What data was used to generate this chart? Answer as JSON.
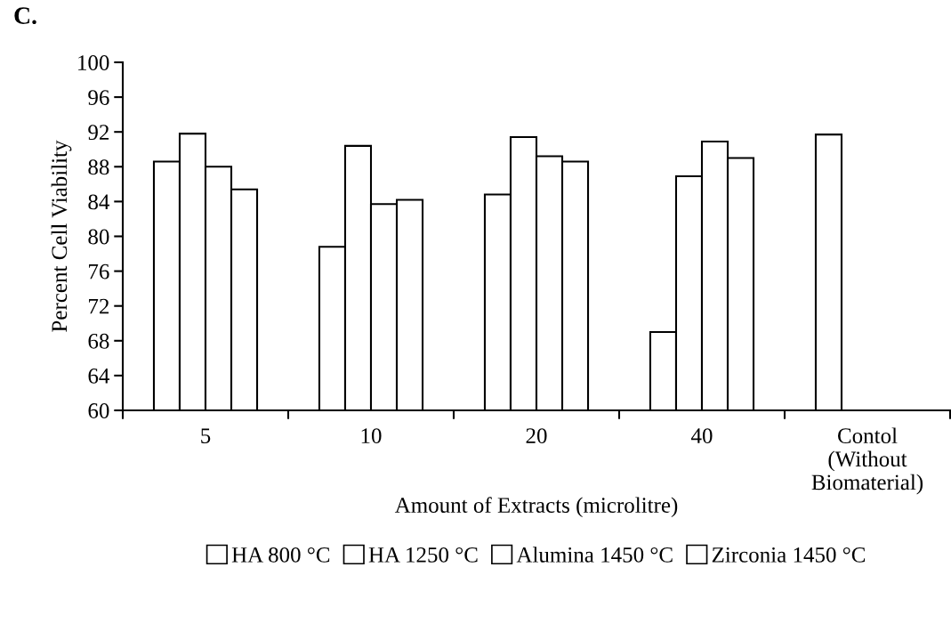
{
  "chart_data": {
    "type": "bar",
    "title": "C.",
    "xlabel": "Amount of Extracts (microlitre)",
    "ylabel": "Percent Cell Viability",
    "categories": [
      "5",
      "10",
      "20",
      "40",
      "Contol\n(Without\nBiomaterial)"
    ],
    "series": [
      {
        "name": "HA 800 °C",
        "color": "#ffffff",
        "values": [
          88.6,
          78.8,
          84.8,
          69.0,
          91.7
        ]
      },
      {
        "name": "HA 1250 °C",
        "color": "#ffffff",
        "values": [
          91.8,
          90.4,
          91.4,
          86.9,
          null
        ]
      },
      {
        "name": "Alumina 1450 °C",
        "color": "#ffffff",
        "values": [
          88.0,
          83.7,
          89.2,
          90.9,
          null
        ]
      },
      {
        "name": "Zirconia 1450 °C",
        "color": "#ffffff",
        "values": [
          85.4,
          84.2,
          88.6,
          89.0,
          null
        ]
      }
    ],
    "ylim": [
      60,
      100
    ],
    "yticks": [
      60,
      64,
      68,
      72,
      76,
      80,
      84,
      88,
      92,
      96,
      100
    ],
    "grid": false,
    "legend": "bottom"
  }
}
